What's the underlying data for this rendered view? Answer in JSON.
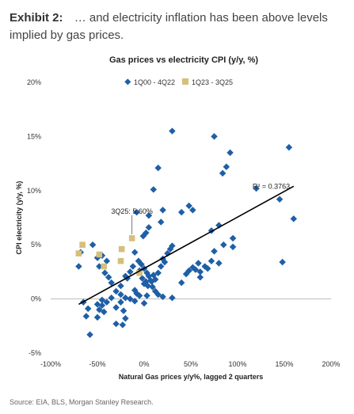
{
  "header": {
    "label": "Exhibit 2:",
    "text": "… and electricity inflation has been above levels implied by gas prices."
  },
  "source": "Source: EIA, BLS, Morgan Stanley Research.",
  "chart_data": {
    "type": "scatter",
    "title": "Gas prices vs electricity CPI (y/y, %)",
    "xlabel": "Natural Gas prices y/y%, lagged 2 quarters",
    "ylabel": "CPI electricity (y/y, %)",
    "xlim": [
      -100,
      200
    ],
    "ylim": [
      -5,
      20
    ],
    "x_ticks": [
      -100,
      -50,
      0,
      50,
      100,
      150,
      200
    ],
    "x_tick_labels": [
      "-100%",
      "-50%",
      "0%",
      "50%",
      "100%",
      "150%",
      "200%"
    ],
    "y_ticks": [
      -5,
      0,
      5,
      10,
      15,
      20
    ],
    "y_tick_labels": [
      "-5%",
      "0%",
      "5%",
      "10%",
      "15%",
      "20%"
    ],
    "grid": false,
    "legend_position": "top",
    "colors": {
      "series1": "#1f5fa6",
      "series2": "#d6bf7b",
      "trend": "#000000"
    },
    "series": [
      {
        "name": "1Q00 - 4Q22",
        "marker": "diamond",
        "points": [
          [
            30,
            15.5
          ],
          [
            75,
            15
          ],
          [
            92,
            13.5
          ],
          [
            155,
            14
          ],
          [
            88,
            12.2
          ],
          [
            84,
            11.6
          ],
          [
            15,
            12.1
          ],
          [
            120,
            10.2
          ],
          [
            145,
            9.2
          ],
          [
            160,
            7.4
          ],
          [
            10,
            10.1
          ],
          [
            -8,
            8.0
          ],
          [
            5,
            7.7
          ],
          [
            20,
            8.2
          ],
          [
            48,
            8.6
          ],
          [
            52,
            8.2
          ],
          [
            40,
            8.0
          ],
          [
            18,
            7.1
          ],
          [
            5,
            6.6
          ],
          [
            2,
            6.1
          ],
          [
            -1,
            5.8
          ],
          [
            80,
            6.8
          ],
          [
            72,
            6.3
          ],
          [
            95,
            5.6
          ],
          [
            85,
            5.0
          ],
          [
            75,
            4.4
          ],
          [
            95,
            4.8
          ],
          [
            148,
            3.4
          ],
          [
            -70,
            3.0
          ],
          [
            -68,
            4.3
          ],
          [
            -55,
            5.0
          ],
          [
            -45,
            4.0
          ],
          [
            -50,
            3.8
          ],
          [
            -40,
            3.5
          ],
          [
            -48,
            3.0
          ],
          [
            -42,
            2.4
          ],
          [
            -38,
            2.0
          ],
          [
            -35,
            1.5
          ],
          [
            -25,
            1.2
          ],
          [
            -20,
            2.1
          ],
          [
            -18,
            1.9
          ],
          [
            -15,
            2.5
          ],
          [
            -12,
            3.0
          ],
          [
            -10,
            4.3
          ],
          [
            -6,
            3.5
          ],
          [
            -3,
            3.2
          ],
          [
            0,
            2.8
          ],
          [
            3,
            2.4
          ],
          [
            5,
            2.1
          ],
          [
            8,
            1.6
          ],
          [
            10,
            2.2
          ],
          [
            12,
            1.8
          ],
          [
            15,
            2.4
          ],
          [
            18,
            3.0
          ],
          [
            20,
            3.7
          ],
          [
            22,
            3.4
          ],
          [
            25,
            4.2
          ],
          [
            28,
            4.6
          ],
          [
            30,
            4.9
          ],
          [
            -5,
            2.6
          ],
          [
            -2,
            1.9
          ],
          [
            0,
            1.4
          ],
          [
            2,
            1.6
          ],
          [
            4,
            1.2
          ],
          [
            7,
            1.7
          ],
          [
            9,
            1.1
          ],
          [
            12,
            0.7
          ],
          [
            -10,
            0.8
          ],
          [
            -8,
            0.5
          ],
          [
            -5,
            0.3
          ],
          [
            -20,
            0.1
          ],
          [
            -25,
            0.4
          ],
          [
            -30,
            0.7
          ],
          [
            -35,
            0.1
          ],
          [
            -40,
            -0.3
          ],
          [
            -45,
            -0.6
          ],
          [
            -48,
            -1.0
          ],
          [
            -50,
            -0.5
          ],
          [
            -45,
            -0.1
          ],
          [
            -43,
            -1.2
          ],
          [
            -50,
            -1.7
          ],
          [
            -30,
            -0.8
          ],
          [
            -25,
            -0.3
          ],
          [
            -22,
            -1.1
          ],
          [
            -20,
            -1.8
          ],
          [
            -30,
            -2.3
          ],
          [
            -23,
            -2.4
          ],
          [
            -60,
            -0.9
          ],
          [
            -65,
            -0.3
          ],
          [
            -62,
            -1.6
          ],
          [
            -58,
            -3.3
          ],
          [
            -10,
            -0.2
          ],
          [
            0,
            -0.4
          ],
          [
            3,
            0.3
          ],
          [
            15,
            0.4
          ],
          [
            20,
            0.2
          ],
          [
            30,
            0.1
          ],
          [
            -15,
            0.0
          ],
          [
            45,
            2.3
          ],
          [
            48,
            2.6
          ],
          [
            52,
            2.9
          ],
          [
            58,
            3.3
          ],
          [
            55,
            2.7
          ],
          [
            60,
            2.5
          ],
          [
            65,
            3.0
          ],
          [
            68,
            2.8
          ],
          [
            72,
            3.5
          ],
          [
            80,
            3.3
          ],
          [
            40,
            1.5
          ],
          [
            60,
            2.0
          ]
        ]
      },
      {
        "name": "1Q23 - 3Q25",
        "marker": "square",
        "points": [
          [
            -70,
            4.2
          ],
          [
            -66,
            5.0
          ],
          [
            -48,
            4.1
          ],
          [
            -43,
            3.0
          ],
          [
            -25,
            3.5
          ],
          [
            -24,
            4.6
          ],
          [
            -13,
            5.6
          ],
          [
            -5,
            2.4
          ]
        ]
      }
    ],
    "trendline": {
      "x": [
        -70,
        160
      ],
      "y": [
        -0.5,
        10.4
      ]
    },
    "annotations": [
      {
        "text": "R² = 0.3763",
        "x": 116,
        "y": 10.4
      },
      {
        "text": "3Q25: 5.60%",
        "x": -13,
        "y": 8.1,
        "target": [
          -13,
          5.6
        ]
      }
    ]
  }
}
